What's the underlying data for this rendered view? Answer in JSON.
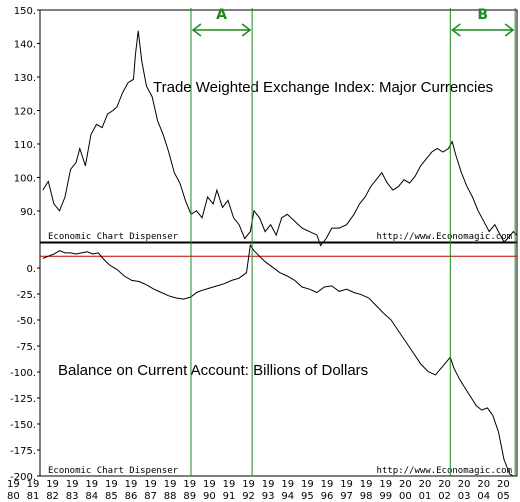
{
  "chart_data": [
    {
      "type": "line",
      "title": "Trade Weighted Exchange Index: Major Currencies",
      "ylim": [
        83,
        150
      ],
      "yticks": [
        "150.",
        "140.",
        "130.",
        "120.",
        "110.",
        "100.",
        "90."
      ],
      "credit_left": "Economic Chart Dispenser",
      "credit_right": "http://www.Economagic.com",
      "series": [
        {
          "color": "#000000",
          "points": [
            [
              1980.0,
              98.0
            ],
            [
              1980.3,
              100.5
            ],
            [
              1980.6,
              94.0
            ],
            [
              1980.9,
              92.0
            ],
            [
              1981.2,
              96.0
            ],
            [
              1981.5,
              104.0
            ],
            [
              1981.8,
              106.0
            ],
            [
              1982.0,
              110.0
            ],
            [
              1982.3,
              105.0
            ],
            [
              1982.6,
              114.0
            ],
            [
              1982.9,
              117.0
            ],
            [
              1983.2,
              116.0
            ],
            [
              1983.5,
              120.0
            ],
            [
              1983.8,
              121.0
            ],
            [
              1984.0,
              122.0
            ],
            [
              1984.3,
              126.0
            ],
            [
              1984.6,
              129.0
            ],
            [
              1984.9,
              130.0
            ],
            [
              1985.0,
              137.0
            ],
            [
              1985.15,
              144.0
            ],
            [
              1985.35,
              135.0
            ],
            [
              1985.6,
              128.0
            ],
            [
              1985.9,
              125.0
            ],
            [
              1986.2,
              118.0
            ],
            [
              1986.5,
              114.0
            ],
            [
              1986.8,
              109.0
            ],
            [
              1987.1,
              103.0
            ],
            [
              1987.4,
              100.0
            ],
            [
              1987.7,
              95.0
            ],
            [
              1988.0,
              91.0
            ],
            [
              1988.3,
              92.0
            ],
            [
              1988.6,
              90.0
            ],
            [
              1988.9,
              96.0
            ],
            [
              1989.2,
              94.0
            ],
            [
              1989.4,
              98.0
            ],
            [
              1989.7,
              93.0
            ],
            [
              1990.0,
              95.0
            ],
            [
              1990.3,
              90.0
            ],
            [
              1990.6,
              88.0
            ],
            [
              1990.9,
              84.0
            ],
            [
              1991.2,
              86.0
            ],
            [
              1991.4,
              92.0
            ],
            [
              1991.7,
              90.0
            ],
            [
              1992.0,
              86.0
            ],
            [
              1992.3,
              88.0
            ],
            [
              1992.6,
              85.0
            ],
            [
              1992.9,
              90.0
            ],
            [
              1993.2,
              91.0
            ],
            [
              1993.6,
              89.0
            ],
            [
              1994.0,
              87.0
            ],
            [
              1994.4,
              86.0
            ],
            [
              1994.8,
              85.0
            ],
            [
              1995.0,
              82.0
            ],
            [
              1995.3,
              84.0
            ],
            [
              1995.6,
              87.0
            ],
            [
              1996.0,
              87.0
            ],
            [
              1996.4,
              88.0
            ],
            [
              1996.8,
              91.0
            ],
            [
              1997.1,
              94.0
            ],
            [
              1997.4,
              96.0
            ],
            [
              1997.7,
              99.0
            ],
            [
              1998.0,
              101.0
            ],
            [
              1998.3,
              103.0
            ],
            [
              1998.6,
              100.0
            ],
            [
              1998.9,
              98.0
            ],
            [
              1999.2,
              99.0
            ],
            [
              1999.5,
              101.0
            ],
            [
              1999.8,
              100.0
            ],
            [
              2000.1,
              102.0
            ],
            [
              2000.4,
              105.0
            ],
            [
              2000.7,
              107.0
            ],
            [
              2001.0,
              109.0
            ],
            [
              2001.3,
              110.0
            ],
            [
              2001.6,
              109.0
            ],
            [
              2001.9,
              110.0
            ],
            [
              2002.1,
              112.0
            ],
            [
              2002.3,
              108.0
            ],
            [
              2002.6,
              103.0
            ],
            [
              2002.9,
              99.0
            ],
            [
              2003.2,
              96.0
            ],
            [
              2003.5,
              92.0
            ],
            [
              2003.8,
              89.0
            ],
            [
              2004.1,
              86.0
            ],
            [
              2004.4,
              88.0
            ],
            [
              2004.7,
              85.0
            ],
            [
              2004.9,
              83.0
            ],
            [
              2005.1,
              84.0
            ],
            [
              2005.4,
              86.0
            ],
            [
              2005.6,
              85.0
            ]
          ]
        }
      ]
    },
    {
      "type": "line",
      "title": "Balance on Current Account: Billions of Dollars",
      "ylim": [
        -200,
        12
      ],
      "yticks": [
        "0.",
        "-25.",
        "-50.",
        "-75.",
        "-100.",
        "-125.",
        "-150.",
        "-175.",
        "-200."
      ],
      "zero_line_color": "#c00000",
      "credit_left": "Economic Chart Dispenser",
      "credit_right": "http://www.Economagic.com",
      "series": [
        {
          "color": "#000000",
          "points": [
            [
              1980.0,
              -2.0
            ],
            [
              1980.3,
              0.0
            ],
            [
              1980.6,
              2.0
            ],
            [
              1980.9,
              5.0
            ],
            [
              1981.2,
              3.0
            ],
            [
              1981.5,
              3.0
            ],
            [
              1981.8,
              2.0
            ],
            [
              1982.1,
              3.0
            ],
            [
              1982.4,
              4.0
            ],
            [
              1982.7,
              2.0
            ],
            [
              1983.0,
              3.0
            ],
            [
              1983.3,
              -3.0
            ],
            [
              1983.6,
              -8.0
            ],
            [
              1984.0,
              -12.0
            ],
            [
              1984.4,
              -18.0
            ],
            [
              1984.8,
              -22.0
            ],
            [
              1985.2,
              -23.0
            ],
            [
              1985.6,
              -26.0
            ],
            [
              1986.0,
              -30.0
            ],
            [
              1986.4,
              -33.0
            ],
            [
              1986.8,
              -36.0
            ],
            [
              1987.2,
              -38.0
            ],
            [
              1987.6,
              -39.0
            ],
            [
              1988.0,
              -37.0
            ],
            [
              1988.3,
              -33.0
            ],
            [
              1988.6,
              -31.0
            ],
            [
              1989.0,
              -29.0
            ],
            [
              1989.4,
              -27.0
            ],
            [
              1989.8,
              -25.0
            ],
            [
              1990.2,
              -22.0
            ],
            [
              1990.6,
              -20.0
            ],
            [
              1991.0,
              -15.0
            ],
            [
              1991.2,
              10.0
            ],
            [
              1991.4,
              5.0
            ],
            [
              1991.7,
              0.0
            ],
            [
              1992.0,
              -5.0
            ],
            [
              1992.4,
              -10.0
            ],
            [
              1992.8,
              -15.0
            ],
            [
              1993.2,
              -18.0
            ],
            [
              1993.6,
              -22.0
            ],
            [
              1994.0,
              -28.0
            ],
            [
              1994.4,
              -30.0
            ],
            [
              1994.8,
              -33.0
            ],
            [
              1995.2,
              -28.0
            ],
            [
              1995.6,
              -27.0
            ],
            [
              1996.0,
              -32.0
            ],
            [
              1996.4,
              -30.0
            ],
            [
              1996.8,
              -33.0
            ],
            [
              1997.2,
              -35.0
            ],
            [
              1997.6,
              -38.0
            ],
            [
              1998.0,
              -45.0
            ],
            [
              1998.4,
              -52.0
            ],
            [
              1998.8,
              -58.0
            ],
            [
              1999.2,
              -68.0
            ],
            [
              1999.6,
              -78.0
            ],
            [
              2000.0,
              -88.0
            ],
            [
              2000.4,
              -98.0
            ],
            [
              2000.8,
              -105.0
            ],
            [
              2001.2,
              -108.0
            ],
            [
              2001.6,
              -100.0
            ],
            [
              2002.0,
              -92.0
            ],
            [
              2002.2,
              -102.0
            ],
            [
              2002.5,
              -112.0
            ],
            [
              2002.8,
              -120.0
            ],
            [
              2003.1,
              -128.0
            ],
            [
              2003.4,
              -136.0
            ],
            [
              2003.7,
              -140.0
            ],
            [
              2004.0,
              -138.0
            ],
            [
              2004.3,
              -145.0
            ],
            [
              2004.6,
              -160.0
            ],
            [
              2004.9,
              -185.0
            ],
            [
              2005.2,
              -198.0
            ],
            [
              2005.4,
              -200.0
            ]
          ]
        }
      ]
    }
  ],
  "x_axis": {
    "range": [
      1979.85,
      2005.6
    ],
    "tick_top": [
      "19",
      "19",
      "19",
      "19",
      "19",
      "19",
      "19",
      "19",
      "19",
      "19",
      "19",
      "19",
      "19",
      "19",
      "19",
      "19",
      "19",
      "19",
      "19",
      "19",
      "20",
      "20",
      "20",
      "20",
      "20",
      "20"
    ],
    "tick_bottom": [
      "80",
      "81",
      "82",
      "83",
      "84",
      "85",
      "86",
      "87",
      "88",
      "89",
      "90",
      "91",
      "92",
      "93",
      "94",
      "95",
      "96",
      "97",
      "98",
      "99",
      "00",
      "01",
      "02",
      "03",
      "04",
      "05"
    ]
  },
  "annotations": [
    {
      "label": "A",
      "x_start": 1988.0,
      "x_end": 1991.3
    },
    {
      "label": "B",
      "x_start": 2002.0,
      "x_end": 2005.5
    }
  ],
  "colors": {
    "marker_line": "#1a8a1a",
    "zero_line": "#c00000",
    "data_line": "#000000"
  }
}
